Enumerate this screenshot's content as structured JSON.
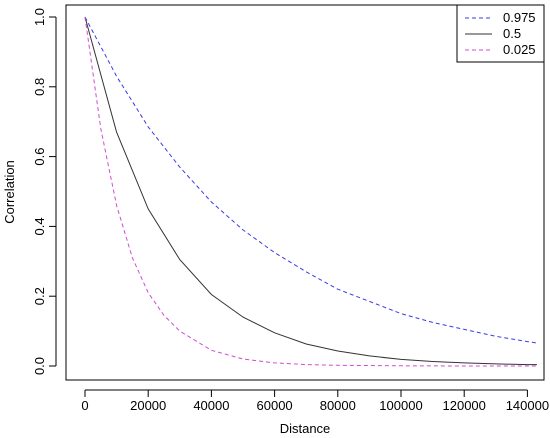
{
  "chart_data": {
    "type": "line",
    "title": "",
    "xlabel": "Distance",
    "ylabel": "Correlation",
    "xlim": [
      0,
      145000
    ],
    "ylim": [
      0,
      1.0
    ],
    "x_ticks": [
      0,
      20000,
      40000,
      60000,
      80000,
      100000,
      120000,
      140000
    ],
    "x_tick_labels": [
      "0",
      "20000",
      "40000",
      "60000",
      "80000",
      "100000",
      "120000",
      "140000"
    ],
    "y_ticks": [
      0.0,
      0.2,
      0.4,
      0.6,
      0.8,
      1.0
    ],
    "y_tick_labels": [
      "0.0",
      "0.2",
      "0.4",
      "0.6",
      "0.8",
      "1.0"
    ],
    "grid": false,
    "legend_position": "top-right",
    "series": [
      {
        "name": "0.975",
        "color": "#3a3ae8",
        "dash": "dashed",
        "x": [
          0,
          10000,
          20000,
          30000,
          40000,
          50000,
          60000,
          70000,
          80000,
          90000,
          100000,
          110000,
          120000,
          130000,
          140000,
          143000
        ],
        "y": [
          1.0,
          0.83,
          0.685,
          0.57,
          0.47,
          0.39,
          0.325,
          0.27,
          0.22,
          0.185,
          0.15,
          0.125,
          0.105,
          0.085,
          0.07,
          0.066
        ]
      },
      {
        "name": "0.5",
        "color": "#333333",
        "dash": "solid",
        "x": [
          0,
          10000,
          20000,
          30000,
          40000,
          50000,
          60000,
          70000,
          80000,
          90000,
          100000,
          110000,
          120000,
          130000,
          140000,
          143000
        ],
        "y": [
          1.0,
          0.67,
          0.45,
          0.305,
          0.205,
          0.14,
          0.095,
          0.063,
          0.043,
          0.029,
          0.019,
          0.013,
          0.009,
          0.006,
          0.004,
          0.004
        ]
      },
      {
        "name": "0.025",
        "color": "#d04bd0",
        "dash": "dashed",
        "x": [
          0,
          5000,
          10000,
          15000,
          20000,
          25000,
          30000,
          40000,
          50000,
          60000,
          70000,
          80000,
          100000,
          120000,
          143000
        ],
        "y": [
          1.0,
          0.68,
          0.46,
          0.31,
          0.21,
          0.145,
          0.1,
          0.045,
          0.02,
          0.009,
          0.004,
          0.002,
          0.0005,
          0.0001,
          0.0
        ]
      }
    ]
  }
}
